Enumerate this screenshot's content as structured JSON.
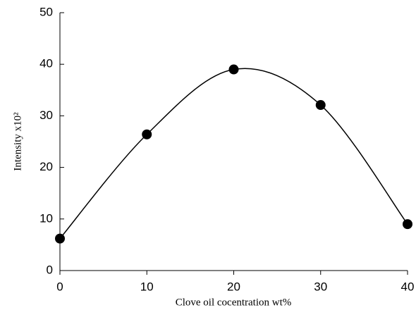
{
  "chart_data": {
    "type": "scatter",
    "x_label": "Clove oil cocentration wt%",
    "y_label": "Intensity x10²",
    "x": [
      0,
      10,
      20,
      30,
      40
    ],
    "series": [
      {
        "values": [
          6.2,
          26.4,
          39,
          32.1,
          9
        ],
        "color": "#000000"
      }
    ],
    "smooth_line": true,
    "xlim": [
      0,
      40
    ],
    "xticks": [
      0,
      10,
      20,
      30,
      40
    ],
    "ylim": [
      0,
      50
    ],
    "yticks": [
      0,
      10,
      20,
      30,
      40,
      50
    ],
    "grid": false
  }
}
